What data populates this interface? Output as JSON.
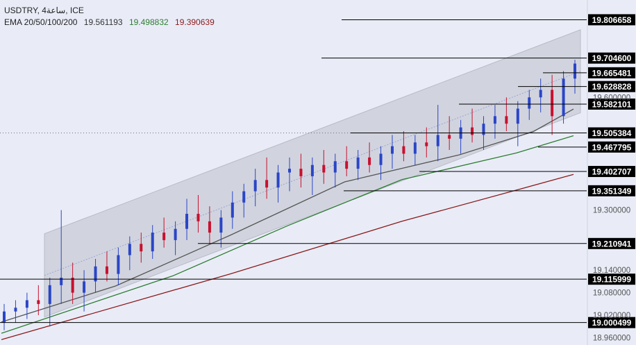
{
  "header": {
    "symbol_line": "USDTRY, 4ساعة, ICE",
    "ema_label": "EMA 20/50/100/200",
    "ema_values": [
      "19.561193",
      "19.498832",
      "19.390639"
    ]
  },
  "colors": {
    "background": "#e9ecf7",
    "candle_up": "#2a45c7",
    "candle_down": "#c8102e",
    "channel_fill": "#c8ccd6",
    "ema_20": "#555555",
    "ema_50": "#2e7d32",
    "ema_200": "#8b1a1a",
    "level_line": "#000000",
    "label_bg": "#000000",
    "label_text": "#ffffff"
  },
  "chart_data": {
    "type": "line",
    "title": "USDTRY, 4ساعة, ICE",
    "ylim": [
      18.95,
      19.85
    ],
    "price_axis_ticks": [
      "19.600000",
      "19.300000",
      "19.140000",
      "19.080000",
      "19.020000",
      "18.960000"
    ],
    "levels": [
      {
        "label": "19.806658",
        "value": 19.806658
      },
      {
        "label": "19.704600",
        "value": 19.7046
      },
      {
        "label": "19.665481",
        "value": 19.665481
      },
      {
        "label": "19.628828",
        "value": 19.628828
      },
      {
        "label": "19.582101",
        "value": 19.582101
      },
      {
        "label": "19.505384",
        "value": 19.505384
      },
      {
        "label": "19.467795",
        "value": 19.467795
      },
      {
        "label": "19.402707",
        "value": 19.402707
      },
      {
        "label": "19.351349",
        "value": 19.351349
      },
      {
        "label": "19.210941",
        "value": 19.210941
      },
      {
        "label": "19.115999",
        "value": 19.115999
      },
      {
        "label": "19.000499",
        "value": 19.000499
      }
    ],
    "channel": {
      "upper": [
        [
          0,
          19.237
        ],
        [
          1,
          19.78
        ]
      ],
      "lower": [
        [
          0,
          19.015
        ],
        [
          1,
          19.559
        ]
      ]
    },
    "series": [
      {
        "values": [
          [
            0,
            19.002
          ],
          [
            0.2,
            19.098
          ],
          [
            0.4,
            19.233
          ],
          [
            0.6,
            19.375
          ],
          [
            0.8,
            19.447
          ],
          [
            0.93,
            19.509
          ],
          [
            1,
            19.569
          ]
        ]
      },
      {
        "values": [
          [
            0,
            18.972
          ],
          [
            0.3,
            19.125
          ],
          [
            0.5,
            19.258
          ],
          [
            0.7,
            19.381
          ],
          [
            0.9,
            19.452
          ],
          [
            1,
            19.498
          ]
        ]
      },
      {
        "values": [
          [
            0,
            18.955
          ],
          [
            0.4,
            19.13
          ],
          [
            0.7,
            19.27
          ],
          [
            0.9,
            19.353
          ],
          [
            1,
            19.395
          ]
        ]
      }
    ],
    "candles_ohlc": [
      [
        19.0,
        19.05,
        18.98,
        19.03
      ],
      [
        19.03,
        19.06,
        19.0,
        19.04
      ],
      [
        19.04,
        19.08,
        19.01,
        19.06
      ],
      [
        19.06,
        19.1,
        19.02,
        19.05
      ],
      [
        19.05,
        19.12,
        18.99,
        19.1
      ],
      [
        19.1,
        19.3,
        19.05,
        19.12
      ],
      [
        19.12,
        19.16,
        19.05,
        19.08
      ],
      [
        19.08,
        19.14,
        19.03,
        19.11
      ],
      [
        19.11,
        19.17,
        19.08,
        19.15
      ],
      [
        19.15,
        19.19,
        19.11,
        19.13
      ],
      [
        19.13,
        19.2,
        19.1,
        19.18
      ],
      [
        19.18,
        19.23,
        19.14,
        19.21
      ],
      [
        19.21,
        19.24,
        19.16,
        19.19
      ],
      [
        19.19,
        19.26,
        19.17,
        19.24
      ],
      [
        19.24,
        19.28,
        19.2,
        19.22
      ],
      [
        19.22,
        19.27,
        19.18,
        19.25
      ],
      [
        19.25,
        19.33,
        19.22,
        19.29
      ],
      [
        19.29,
        19.34,
        19.24,
        19.27
      ],
      [
        19.27,
        19.31,
        19.21,
        19.24
      ],
      [
        19.24,
        19.3,
        19.2,
        19.28
      ],
      [
        19.28,
        19.35,
        19.25,
        19.32
      ],
      [
        19.32,
        19.37,
        19.28,
        19.35
      ],
      [
        19.35,
        19.41,
        19.31,
        19.38
      ],
      [
        19.38,
        19.44,
        19.33,
        19.36
      ],
      [
        19.36,
        19.42,
        19.32,
        19.4
      ],
      [
        19.4,
        19.44,
        19.35,
        19.41
      ],
      [
        19.41,
        19.45,
        19.36,
        19.39
      ],
      [
        19.39,
        19.44,
        19.34,
        19.42
      ],
      [
        19.42,
        19.46,
        19.37,
        19.4
      ],
      [
        19.4,
        19.45,
        19.36,
        19.43
      ],
      [
        19.43,
        19.47,
        19.39,
        19.41
      ],
      [
        19.41,
        19.46,
        19.38,
        19.44
      ],
      [
        19.44,
        19.48,
        19.4,
        19.42
      ],
      [
        19.42,
        19.47,
        19.38,
        19.45
      ],
      [
        19.45,
        19.5,
        19.41,
        19.47
      ],
      [
        19.47,
        19.51,
        19.43,
        19.45
      ],
      [
        19.45,
        19.5,
        19.42,
        19.48
      ],
      [
        19.48,
        19.52,
        19.44,
        19.47
      ],
      [
        19.47,
        19.58,
        19.43,
        19.5
      ],
      [
        19.5,
        19.55,
        19.46,
        19.49
      ],
      [
        19.49,
        19.54,
        19.45,
        19.52
      ],
      [
        19.52,
        19.57,
        19.48,
        19.5
      ],
      [
        19.5,
        19.55,
        19.46,
        19.53
      ],
      [
        19.53,
        19.58,
        19.49,
        19.55
      ],
      [
        19.55,
        19.6,
        19.51,
        19.53
      ],
      [
        19.53,
        19.59,
        19.47,
        19.57
      ],
      [
        19.57,
        19.62,
        19.54,
        19.6
      ],
      [
        19.6,
        19.65,
        19.56,
        19.62
      ],
      [
        19.62,
        19.66,
        19.5,
        19.55
      ],
      [
        19.55,
        19.67,
        19.53,
        19.65
      ],
      [
        19.65,
        19.7,
        19.61,
        19.69
      ]
    ]
  }
}
